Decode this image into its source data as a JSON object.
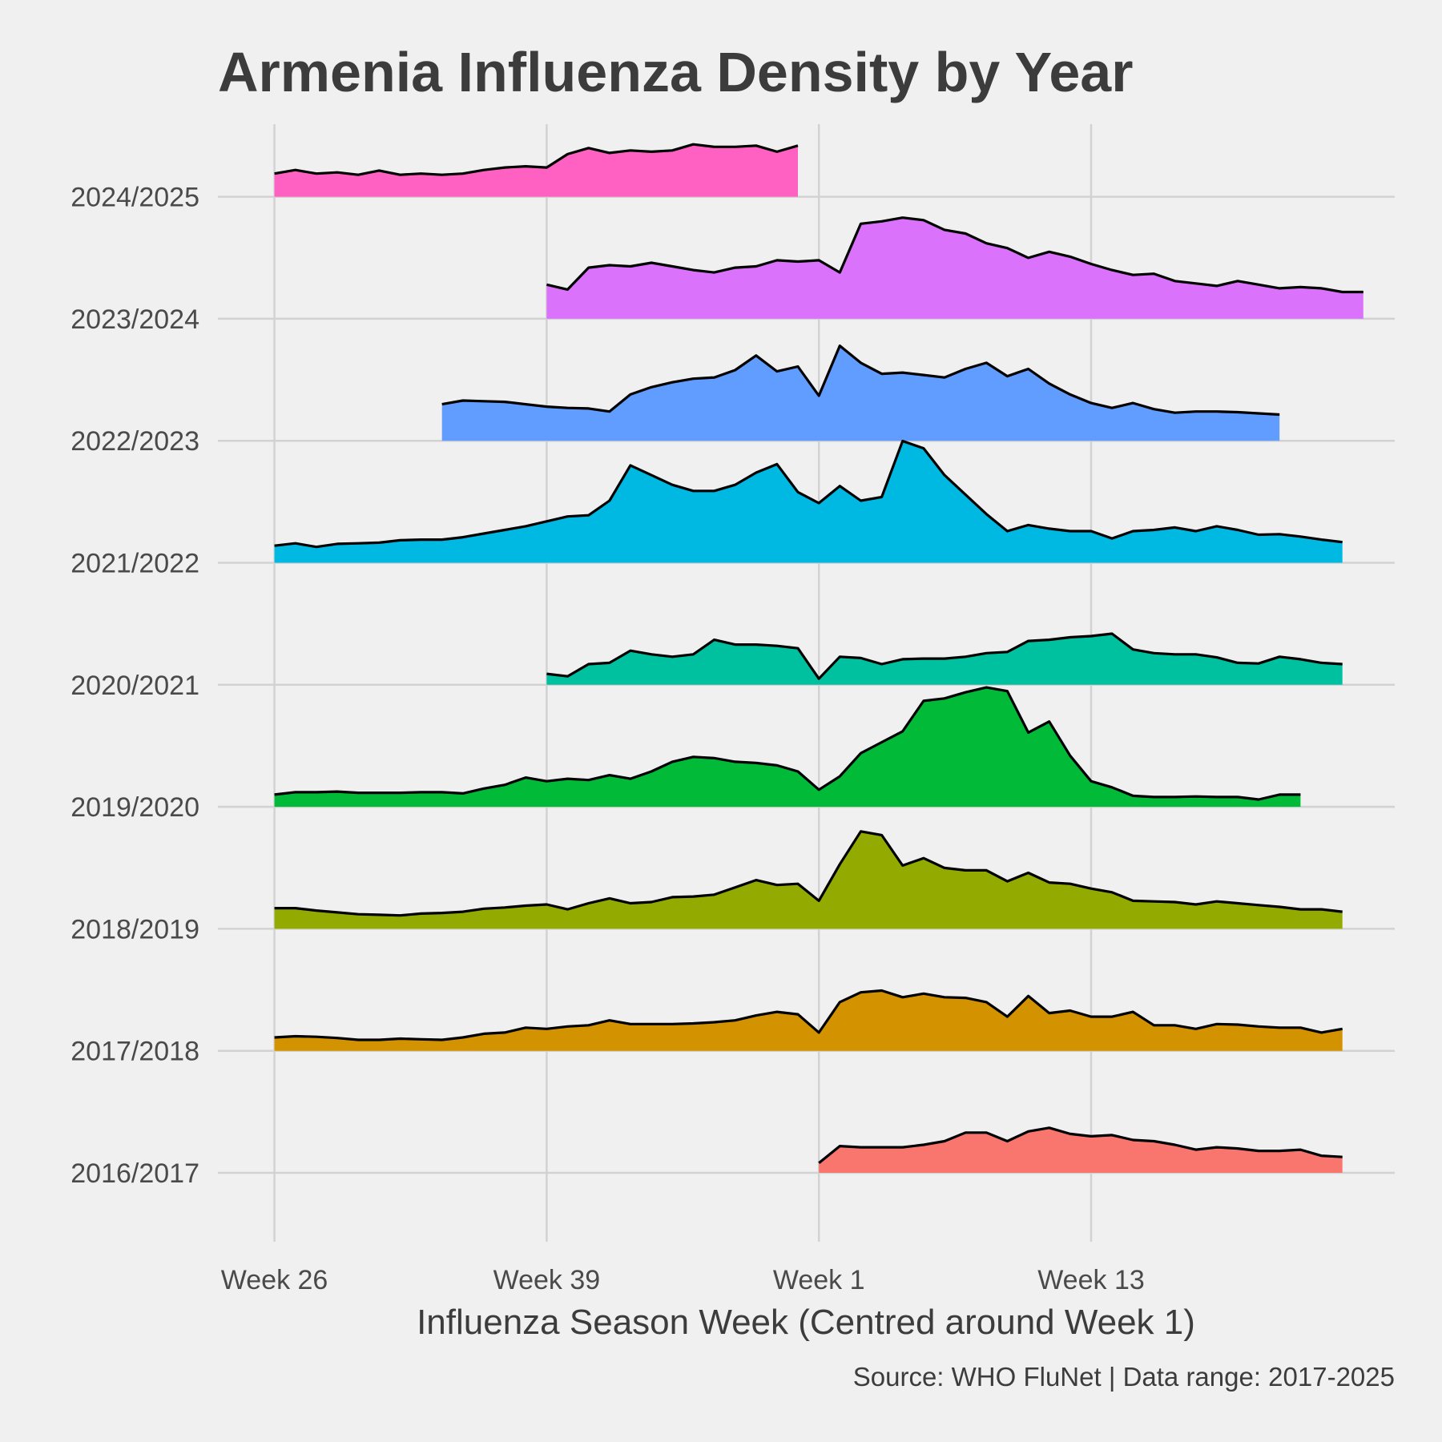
{
  "chart_data": {
    "type": "area",
    "subtype": "ridgeline",
    "title": "Armenia Influenza Density by Year",
    "xlabel": "Influenza Season Week (Centred around Week 1)",
    "ylabel": "",
    "caption": "Source: WHO FluNet | Data range: 2017-2025",
    "x_ticks": [
      "Week 26",
      "Week 39",
      "Week 1",
      "Week 13"
    ],
    "x_tick_season_index": [
      0,
      13,
      26,
      39
    ],
    "x_range": [
      -2.7,
      53.5
    ],
    "grid": true,
    "legend": "none",
    "outline_color": "#000000",
    "series": [
      {
        "name": "2016/2017",
        "color": "#F8766D",
        "start_index": 26,
        "values": [
          0.08,
          0.22,
          0.21,
          0.21,
          0.21,
          0.23,
          0.26,
          0.33,
          0.33,
          0.26,
          0.34,
          0.37,
          0.32,
          0.3,
          0.31,
          0.27,
          0.26,
          0.23,
          0.19,
          0.21,
          0.2,
          0.18,
          0.18,
          0.19,
          0.14,
          0.13
        ]
      },
      {
        "name": "2017/2018",
        "color": "#D39200",
        "start_index": 0,
        "values": [
          0.11,
          0.12,
          0.115,
          0.105,
          0.09,
          0.09,
          0.1,
          0.095,
          0.09,
          0.11,
          0.14,
          0.15,
          0.19,
          0.18,
          0.2,
          0.21,
          0.25,
          0.22,
          0.22,
          0.22,
          0.225,
          0.235,
          0.25,
          0.29,
          0.32,
          0.3,
          0.15,
          0.4,
          0.48,
          0.495,
          0.44,
          0.47,
          0.44,
          0.435,
          0.4,
          0.28,
          0.45,
          0.31,
          0.33,
          0.28,
          0.28,
          0.32,
          0.21,
          0.21,
          0.18,
          0.22,
          0.215,
          0.2,
          0.19,
          0.19,
          0.15,
          0.18
        ]
      },
      {
        "name": "2018/2019",
        "color": "#93AA00",
        "start_index": 0,
        "values": [
          0.17,
          0.17,
          0.15,
          0.135,
          0.12,
          0.115,
          0.11,
          0.125,
          0.13,
          0.14,
          0.165,
          0.175,
          0.19,
          0.2,
          0.16,
          0.21,
          0.25,
          0.21,
          0.22,
          0.26,
          0.265,
          0.28,
          0.34,
          0.4,
          0.36,
          0.37,
          0.23,
          0.53,
          0.8,
          0.77,
          0.52,
          0.58,
          0.5,
          0.48,
          0.48,
          0.39,
          0.46,
          0.38,
          0.37,
          0.33,
          0.3,
          0.23,
          0.225,
          0.22,
          0.2,
          0.225,
          0.21,
          0.195,
          0.18,
          0.16,
          0.16,
          0.14
        ]
      },
      {
        "name": "2019/2020",
        "color": "#00BA38",
        "start_index": 0,
        "values": [
          0.1,
          0.12,
          0.12,
          0.125,
          0.115,
          0.115,
          0.115,
          0.12,
          0.12,
          0.11,
          0.15,
          0.18,
          0.24,
          0.21,
          0.23,
          0.22,
          0.26,
          0.23,
          0.29,
          0.37,
          0.41,
          0.4,
          0.37,
          0.36,
          0.34,
          0.29,
          0.14,
          0.25,
          0.44,
          0.53,
          0.62,
          0.87,
          0.89,
          0.94,
          0.98,
          0.95,
          0.61,
          0.7,
          0.42,
          0.21,
          0.16,
          0.09,
          0.08,
          0.08,
          0.085,
          0.08,
          0.08,
          0.06,
          0.1,
          0.1
        ]
      },
      {
        "name": "2020/2021",
        "color": "#00C19F",
        "start_index": 13,
        "values": [
          0.09,
          0.07,
          0.17,
          0.18,
          0.28,
          0.25,
          0.23,
          0.25,
          0.37,
          0.33,
          0.33,
          0.32,
          0.3,
          0.05,
          0.23,
          0.22,
          0.17,
          0.21,
          0.215,
          0.215,
          0.23,
          0.26,
          0.27,
          0.36,
          0.37,
          0.39,
          0.4,
          0.42,
          0.29,
          0.26,
          0.25,
          0.25,
          0.225,
          0.18,
          0.175,
          0.23,
          0.21,
          0.18,
          0.17
        ]
      },
      {
        "name": "2021/2022",
        "color": "#00B9E3",
        "start_index": 0,
        "values": [
          0.14,
          0.16,
          0.13,
          0.155,
          0.16,
          0.165,
          0.185,
          0.19,
          0.19,
          0.21,
          0.24,
          0.27,
          0.3,
          0.34,
          0.38,
          0.39,
          0.51,
          0.8,
          0.72,
          0.64,
          0.59,
          0.59,
          0.64,
          0.74,
          0.81,
          0.58,
          0.49,
          0.63,
          0.51,
          0.54,
          1.0,
          0.94,
          0.72,
          0.56,
          0.4,
          0.26,
          0.31,
          0.28,
          0.26,
          0.26,
          0.2,
          0.26,
          0.27,
          0.29,
          0.26,
          0.3,
          0.27,
          0.23,
          0.235,
          0.215,
          0.19,
          0.17
        ]
      },
      {
        "name": "2022/2023",
        "color": "#619CFF",
        "start_index": 8,
        "values": [
          0.3,
          0.33,
          0.325,
          0.32,
          0.3,
          0.28,
          0.27,
          0.265,
          0.24,
          0.38,
          0.44,
          0.48,
          0.51,
          0.52,
          0.58,
          0.7,
          0.57,
          0.61,
          0.37,
          0.78,
          0.64,
          0.55,
          0.56,
          0.54,
          0.52,
          0.59,
          0.64,
          0.53,
          0.59,
          0.47,
          0.38,
          0.31,
          0.27,
          0.31,
          0.26,
          0.23,
          0.24,
          0.24,
          0.235,
          0.225,
          0.215
        ]
      },
      {
        "name": "2023/2024",
        "color": "#DB72FB",
        "start_index": 13,
        "values": [
          0.28,
          0.24,
          0.42,
          0.44,
          0.43,
          0.46,
          0.43,
          0.4,
          0.38,
          0.42,
          0.43,
          0.48,
          0.47,
          0.48,
          0.38,
          0.78,
          0.8,
          0.83,
          0.81,
          0.73,
          0.7,
          0.62,
          0.58,
          0.5,
          0.55,
          0.51,
          0.45,
          0.4,
          0.36,
          0.37,
          0.31,
          0.29,
          0.27,
          0.31,
          0.28,
          0.25,
          0.26,
          0.25,
          0.22,
          0.22
        ]
      },
      {
        "name": "2024/2025",
        "color": "#FF61C3",
        "start_index": 0,
        "values": [
          0.19,
          0.22,
          0.19,
          0.2,
          0.18,
          0.215,
          0.18,
          0.19,
          0.18,
          0.19,
          0.22,
          0.24,
          0.25,
          0.24,
          0.35,
          0.4,
          0.36,
          0.38,
          0.37,
          0.38,
          0.43,
          0.41,
          0.41,
          0.42,
          0.37,
          0.42
        ]
      }
    ]
  }
}
